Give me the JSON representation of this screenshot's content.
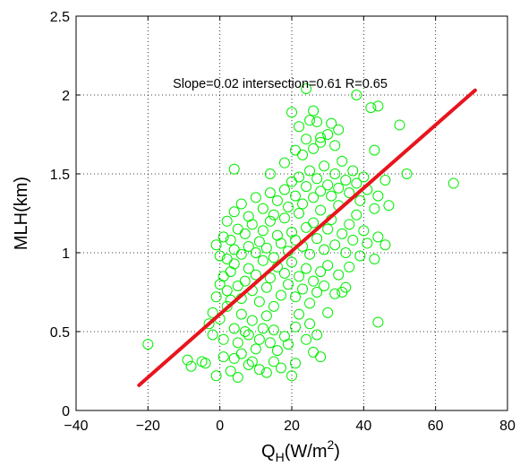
{
  "chart_data": {
    "type": "scatter",
    "title": "",
    "xlabel_main": "Q",
    "xlabel_sub": "H",
    "xlabel_rest": "(W/m",
    "xlabel_sup": "2",
    "xlabel_close": ")",
    "ylabel": "MLH(km)",
    "annotation": "Slope=0.02 intersection=0.61 R=0.65",
    "xlim": [
      -40,
      80
    ],
    "ylim": [
      0,
      2.5
    ],
    "xticks": [
      "−40",
      "−20",
      "0",
      "20",
      "40",
      "60",
      "80"
    ],
    "yticks": [
      "0",
      "0.5",
      "1",
      "1.5",
      "2",
      "2.5"
    ],
    "grid": true,
    "marker_color": "#00ee00",
    "fit_color": "#e8141e",
    "fit_line": {
      "slope": 0.02,
      "intercept": 0.61,
      "x": [
        -22.5,
        71
      ]
    },
    "points": [
      [
        -20,
        0.42
      ],
      [
        -9,
        0.32
      ],
      [
        -8,
        0.28
      ],
      [
        -5,
        0.31
      ],
      [
        -4,
        0.3
      ],
      [
        -2,
        0.48
      ],
      [
        -1,
        0.22
      ],
      [
        1,
        0.34
      ],
      [
        3,
        0.25
      ],
      [
        5,
        0.21
      ],
      [
        4,
        0.33
      ],
      [
        6,
        0.36
      ],
      [
        8,
        0.29
      ],
      [
        9,
        0.31
      ],
      [
        11,
        0.26
      ],
      [
        13,
        0.24
      ],
      [
        15,
        0.31
      ],
      [
        17,
        0.27
      ],
      [
        20,
        0.22
      ],
      [
        21,
        0.3
      ],
      [
        26,
        0.37
      ],
      [
        28,
        0.34
      ],
      [
        -3,
        0.55
      ],
      [
        -2,
        0.62
      ],
      [
        0,
        0.58
      ],
      [
        1,
        0.45
      ],
      [
        2,
        0.66
      ],
      [
        3,
        0.7
      ],
      [
        4,
        0.52
      ],
      [
        5,
        0.43
      ],
      [
        6,
        0.61
      ],
      [
        7,
        0.5
      ],
      [
        8,
        0.48
      ],
      [
        9,
        0.57
      ],
      [
        10,
        0.39
      ],
      [
        11,
        0.45
      ],
      [
        12,
        0.52
      ],
      [
        13,
        0.6
      ],
      [
        14,
        0.43
      ],
      [
        15,
        0.51
      ],
      [
        16,
        0.38
      ],
      [
        18,
        0.47
      ],
      [
        19,
        0.42
      ],
      [
        21,
        0.53
      ],
      [
        22,
        0.61
      ],
      [
        24,
        0.45
      ],
      [
        25,
        0.55
      ],
      [
        27,
        0.48
      ],
      [
        30,
        0.62
      ],
      [
        44,
        0.56
      ],
      [
        -1,
        0.72
      ],
      [
        0,
        0.8
      ],
      [
        1,
        0.85
      ],
      [
        2,
        0.76
      ],
      [
        3,
        0.88
      ],
      [
        4,
        0.93
      ],
      [
        5,
        0.79
      ],
      [
        6,
        0.71
      ],
      [
        7,
        0.82
      ],
      [
        8,
        0.9
      ],
      [
        9,
        0.76
      ],
      [
        10,
        0.86
      ],
      [
        11,
        0.69
      ],
      [
        12,
        0.95
      ],
      [
        13,
        0.78
      ],
      [
        14,
        0.84
      ],
      [
        15,
        0.66
      ],
      [
        16,
        0.91
      ],
      [
        17,
        0.73
      ],
      [
        18,
        0.87
      ],
      [
        19,
        0.8
      ],
      [
        20,
        0.94
      ],
      [
        21,
        0.72
      ],
      [
        22,
        0.85
      ],
      [
        23,
        0.77
      ],
      [
        24,
        0.9
      ],
      [
        25,
        0.68
      ],
      [
        26,
        0.82
      ],
      [
        27,
        0.75
      ],
      [
        28,
        0.88
      ],
      [
        29,
        0.79
      ],
      [
        30,
        0.92
      ],
      [
        32,
        0.74
      ],
      [
        33,
        0.86
      ],
      [
        35,
        0.78
      ],
      [
        36,
        0.91
      ],
      [
        34,
        0.75
      ],
      [
        -1,
        1.05
      ],
      [
        0,
        0.98
      ],
      [
        1,
        1.1
      ],
      [
        2,
        0.96
      ],
      [
        3,
        1.08
      ],
      [
        4,
        1.02
      ],
      [
        5,
        1.15
      ],
      [
        6,
        0.99
      ],
      [
        7,
        1.12
      ],
      [
        8,
        1.04
      ],
      [
        9,
        1.18
      ],
      [
        10,
        1.0
      ],
      [
        11,
        1.07
      ],
      [
        12,
        1.14
      ],
      [
        13,
        1.03
      ],
      [
        14,
        1.2
      ],
      [
        15,
        0.97
      ],
      [
        16,
        1.11
      ],
      [
        17,
        1.06
      ],
      [
        18,
        1.22
      ],
      [
        19,
        1.01
      ],
      [
        20,
        1.13
      ],
      [
        21,
        1.08
      ],
      [
        22,
        1.25
      ],
      [
        23,
        1.04
      ],
      [
        24,
        1.16
      ],
      [
        25,
        0.99
      ],
      [
        26,
        1.19
      ],
      [
        27,
        1.09
      ],
      [
        28,
        1.27
      ],
      [
        29,
        1.02
      ],
      [
        30,
        1.15
      ],
      [
        31,
        1.21
      ],
      [
        32,
        1.05
      ],
      [
        33,
        1.3
      ],
      [
        34,
        1.12
      ],
      [
        35,
        1.0
      ],
      [
        36,
        1.18
      ],
      [
        37,
        1.08
      ],
      [
        38,
        1.24
      ],
      [
        39,
        0.98
      ],
      [
        40,
        1.14
      ],
      [
        41,
        1.06
      ],
      [
        43,
        0.96
      ],
      [
        44,
        1.1
      ],
      [
        46,
        1.05
      ],
      [
        2,
        1.2
      ],
      [
        4,
        1.26
      ],
      [
        6,
        1.31
      ],
      [
        8,
        1.23
      ],
      [
        10,
        1.35
      ],
      [
        12,
        1.28
      ],
      [
        14,
        1.38
      ],
      [
        15,
        1.24
      ],
      [
        16,
        1.33
      ],
      [
        18,
        1.4
      ],
      [
        19,
        1.29
      ],
      [
        20,
        1.45
      ],
      [
        21,
        1.36
      ],
      [
        22,
        1.48
      ],
      [
        23,
        1.31
      ],
      [
        24,
        1.42
      ],
      [
        25,
        1.52
      ],
      [
        26,
        1.35
      ],
      [
        27,
        1.47
      ],
      [
        28,
        1.39
      ],
      [
        29,
        1.55
      ],
      [
        30,
        1.43
      ],
      [
        31,
        1.36
      ],
      [
        32,
        1.5
      ],
      [
        33,
        1.41
      ],
      [
        34,
        1.58
      ],
      [
        35,
        1.46
      ],
      [
        36,
        1.38
      ],
      [
        37,
        1.52
      ],
      [
        38,
        1.44
      ],
      [
        39,
        1.33
      ],
      [
        40,
        1.48
      ],
      [
        41,
        1.4
      ],
      [
        43,
        1.28
      ],
      [
        44,
        1.36
      ],
      [
        46,
        1.46
      ],
      [
        47,
        1.3
      ],
      [
        4,
        1.53
      ],
      [
        14,
        1.5
      ],
      [
        18,
        1.57
      ],
      [
        21,
        1.65
      ],
      [
        23,
        1.62
      ],
      [
        24,
        1.72
      ],
      [
        26,
        1.66
      ],
      [
        28,
        1.7
      ],
      [
        30,
        1.75
      ],
      [
        32,
        1.68
      ],
      [
        33,
        1.78
      ],
      [
        25,
        1.84
      ],
      [
        27,
        1.83
      ],
      [
        31,
        1.82
      ],
      [
        26,
        1.9
      ],
      [
        20,
        1.89
      ],
      [
        24,
        2.04
      ],
      [
        38,
        2.0
      ],
      [
        43,
        1.65
      ],
      [
        44,
        1.93
      ],
      [
        42,
        1.92
      ],
      [
        50,
        1.81
      ],
      [
        52,
        1.5
      ],
      [
        65,
        1.44
      ],
      [
        28,
        1.73
      ],
      [
        22,
        1.8
      ]
    ]
  }
}
